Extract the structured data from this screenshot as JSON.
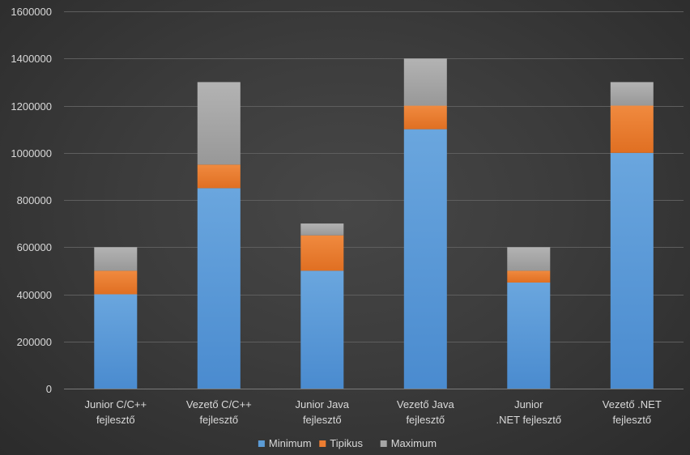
{
  "chart_data": {
    "type": "bar",
    "stacked": true,
    "categories": [
      [
        "Junior C/C++",
        "fejlesztő"
      ],
      [
        "Vezető C/C++",
        "fejlesztő"
      ],
      [
        "Junior Java",
        "fejlesztő"
      ],
      [
        "Vezető Java",
        "fejlesztő"
      ],
      [
        "Junior",
        ".NET fejlesztő"
      ],
      [
        "Vezető .NET",
        "fejlesztő"
      ]
    ],
    "series": [
      {
        "name": "Minimum",
        "color": "#5b9bd5",
        "values": [
          400000,
          850000,
          500000,
          1100000,
          450000,
          1000000
        ]
      },
      {
        "name": "Tipikus",
        "color": "#ed7d31",
        "values": [
          100000,
          100000,
          150000,
          100000,
          50000,
          200000
        ]
      },
      {
        "name": "Maximum",
        "color": "#a5a5a5",
        "values": [
          100000,
          350000,
          50000,
          200000,
          100000,
          100000
        ]
      }
    ],
    "ylim": [
      0,
      1600000
    ],
    "yticks": [
      0,
      200000,
      400000,
      600000,
      800000,
      1000000,
      1200000,
      1400000,
      1600000
    ],
    "grid": true,
    "legend_position": "bottom",
    "title": "",
    "xlabel": "",
    "ylabel": ""
  }
}
